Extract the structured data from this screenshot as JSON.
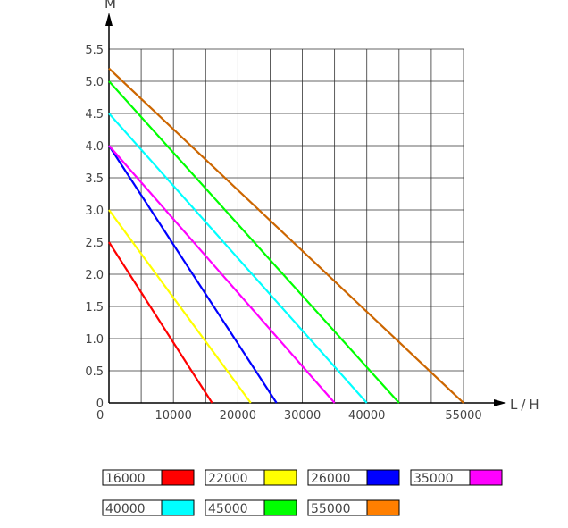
{
  "chart_data": {
    "type": "line",
    "title": "",
    "xlabel": "L/H",
    "ylabel": "M",
    "xlim": [
      0,
      55000
    ],
    "ylim": [
      0,
      5.5
    ],
    "grid": true,
    "legend": "bottom",
    "x_tick_labels": [
      "0",
      "10000",
      "20000",
      "30000",
      "40000",
      "55000"
    ],
    "y_tick_labels": [
      "0",
      "0.5",
      "1.0",
      "1.5",
      "2.0",
      "2.5",
      "3.0",
      "3.5",
      "4.0",
      "4.5",
      "5.0",
      "5.5"
    ],
    "series": [
      {
        "name": "16000",
        "color": "#ff0000",
        "x": [
          0,
          16000
        ],
        "y": [
          2.5,
          0
        ]
      },
      {
        "name": "22000",
        "color": "#ffff00",
        "x": [
          0,
          22000
        ],
        "y": [
          3.0,
          0
        ]
      },
      {
        "name": "26000",
        "color": "#0000ff",
        "x": [
          0,
          26000
        ],
        "y": [
          4.0,
          0
        ]
      },
      {
        "name": "35000",
        "color": "#ff00ff",
        "x": [
          0,
          35000
        ],
        "y": [
          4.0,
          0
        ]
      },
      {
        "name": "40000",
        "color": "#00ffff",
        "x": [
          0,
          40000
        ],
        "y": [
          4.5,
          0
        ]
      },
      {
        "name": "45000",
        "color": "#00ff00",
        "x": [
          0,
          45000
        ],
        "y": [
          5.0,
          0
        ]
      },
      {
        "name": "55000",
        "color": "#cc6600",
        "legend_color": "#ff7f00",
        "x": [
          0,
          55000
        ],
        "y": [
          5.2,
          0
        ]
      }
    ]
  }
}
